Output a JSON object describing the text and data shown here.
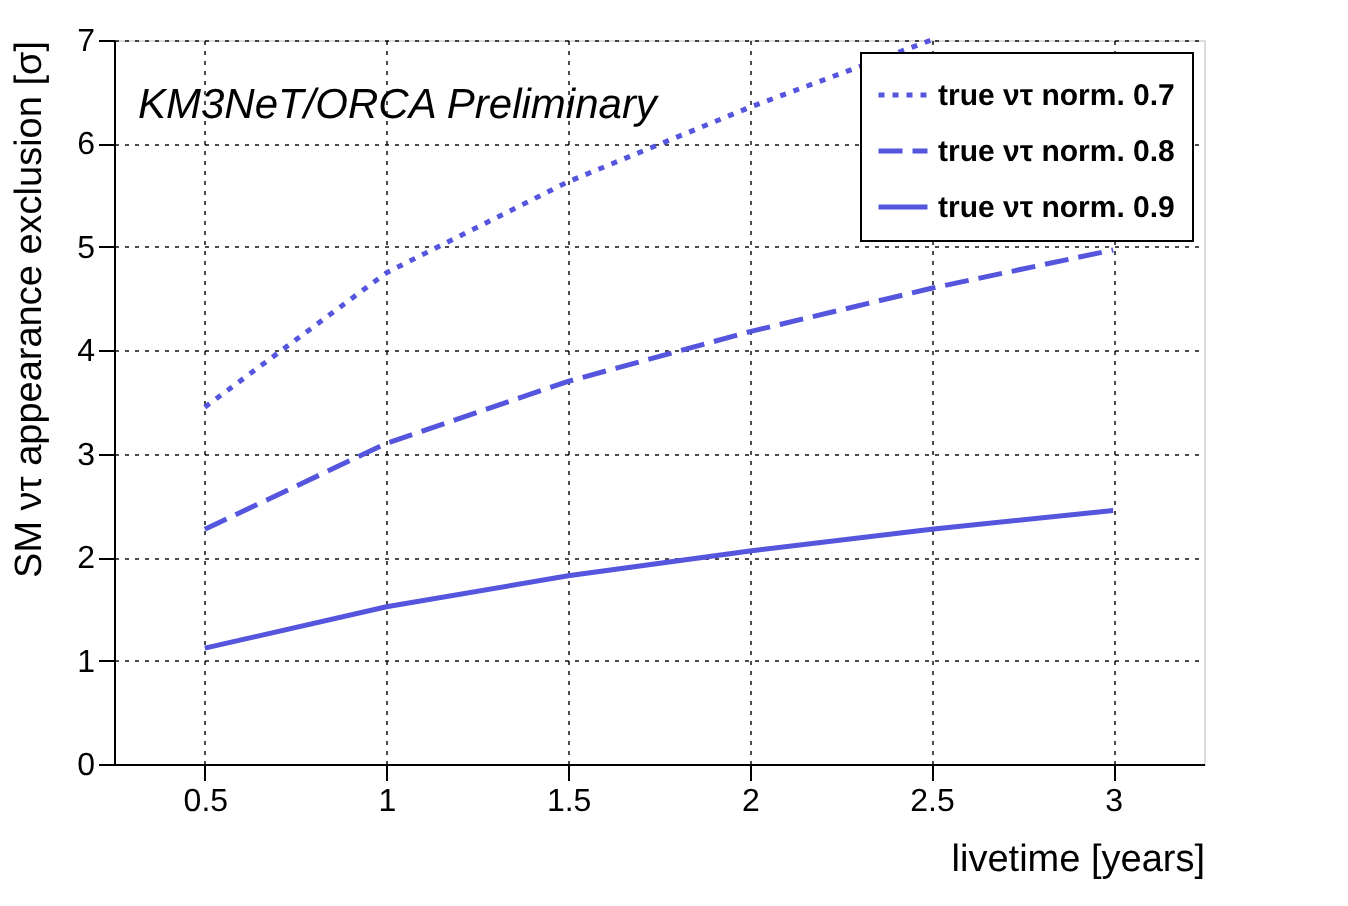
{
  "chart_data": {
    "type": "line",
    "xlabel": "livetime [years]",
    "ylabel": "SM ντ appearance exclusion [σ]",
    "annotations": [
      "KM3NeT/ORCA Preliminary"
    ],
    "x": [
      0.5,
      1,
      1.5,
      2,
      2.5,
      3
    ],
    "series": [
      {
        "name": "true ντ norm. 0.7",
        "color": "#5555dd",
        "line_style": "dotted",
        "values": [
          3.45,
          4.75,
          5.63,
          6.35,
          7.0,
          null
        ]
      },
      {
        "name": "true ντ norm. 0.8",
        "color": "#5555dd",
        "line_style": "dashed",
        "values": [
          2.27,
          3.1,
          3.7,
          4.18,
          4.6,
          4.97
        ]
      },
      {
        "name": "true ντ norm. 0.9",
        "color": "#5555dd",
        "line_style": "solid",
        "values": [
          1.12,
          1.52,
          1.82,
          2.06,
          2.27,
          2.45
        ]
      }
    ],
    "xlim": [
      0.25,
      3.25
    ],
    "xticks": [
      0.5,
      1,
      1.5,
      2,
      2.5,
      3
    ],
    "ylim": [
      0,
      7
    ],
    "yticks": [
      0,
      1,
      2,
      3,
      4,
      5,
      6,
      7
    ],
    "grid": true,
    "legend": "top right",
    "marker": "none"
  }
}
